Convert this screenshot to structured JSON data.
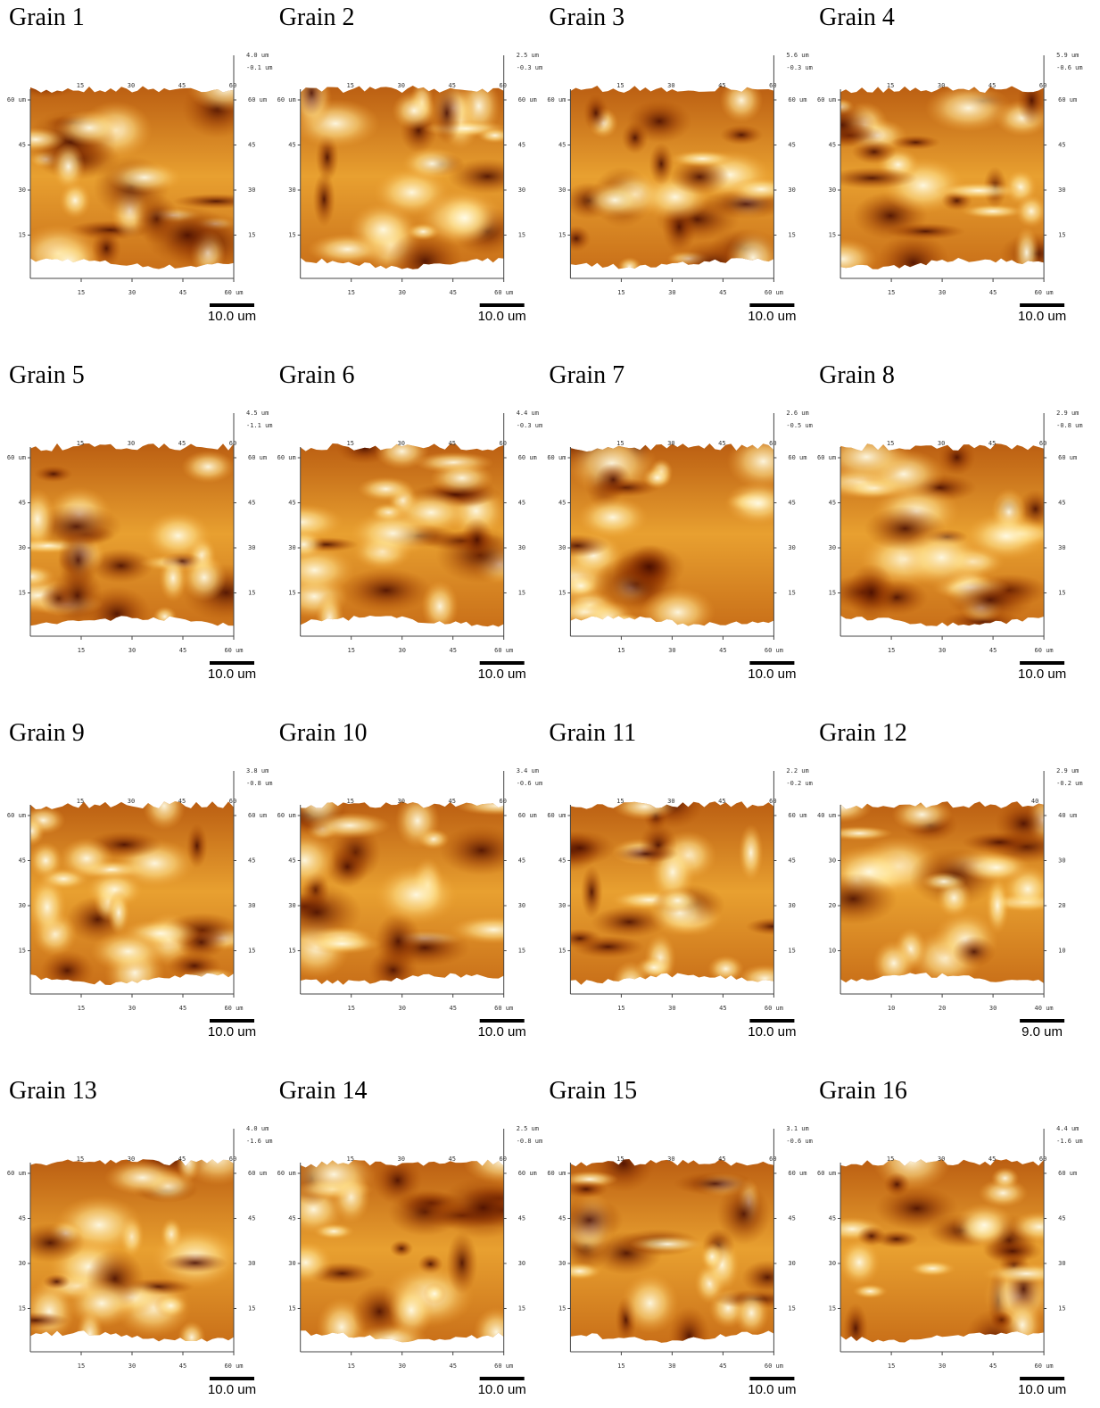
{
  "panels": [
    {
      "title": "Grain 1",
      "z_max": "4.0 um",
      "z_min": "-0.1 um",
      "top_ticks": [
        "15",
        "30",
        "45",
        "60"
      ],
      "y_ticks_left": [
        "60 um",
        "45",
        "30",
        "15"
      ],
      "y_ticks_right": [
        "60 um",
        "45",
        "30",
        "15"
      ],
      "x_ticks": [
        "15",
        "30",
        "45",
        "60 um"
      ],
      "scale": "10.0 um"
    },
    {
      "title": "Grain 2",
      "z_max": "2.5 um",
      "z_min": "-0.3 um",
      "top_ticks": [
        "15",
        "30",
        "45",
        "60"
      ],
      "y_ticks_left": [
        "60 um",
        "45",
        "30",
        "15"
      ],
      "y_ticks_right": [
        "60 um",
        "45",
        "30",
        "15"
      ],
      "x_ticks": [
        "15",
        "30",
        "45",
        "60 um"
      ],
      "scale": "10.0 um"
    },
    {
      "title": "Grain 3",
      "z_max": "5.6 um",
      "z_min": "-0.3 um",
      "top_ticks": [
        "15",
        "30",
        "45",
        "60"
      ],
      "y_ticks_left": [
        "60 um",
        "45",
        "30",
        "15"
      ],
      "y_ticks_right": [
        "60 um",
        "45",
        "30",
        "15"
      ],
      "x_ticks": [
        "15",
        "30",
        "45",
        "60 um"
      ],
      "scale": "10.0 um"
    },
    {
      "title": "Grain 4",
      "z_max": "5.9 um",
      "z_min": "-0.6 um",
      "top_ticks": [
        "15",
        "30",
        "45",
        "60"
      ],
      "y_ticks_left": [
        "60 um",
        "45",
        "30",
        "15"
      ],
      "y_ticks_right": [
        "60 um",
        "45",
        "30",
        "15"
      ],
      "x_ticks": [
        "15",
        "30",
        "45",
        "60 um"
      ],
      "scale": "10.0 um"
    },
    {
      "title": "Grain 5",
      "z_max": "4.5 um",
      "z_min": "-1.1 um",
      "top_ticks": [
        "15",
        "30",
        "45",
        "60"
      ],
      "y_ticks_left": [
        "60 um",
        "45",
        "30",
        "15"
      ],
      "y_ticks_right": [
        "60 um",
        "45",
        "30",
        "15"
      ],
      "x_ticks": [
        "15",
        "30",
        "45",
        "60 um"
      ],
      "scale": "10.0 um"
    },
    {
      "title": "Grain 6",
      "z_max": "4.4 um",
      "z_min": "-0.3 um",
      "top_ticks": [
        "15",
        "30",
        "45",
        "60"
      ],
      "y_ticks_left": [
        "60 um",
        "45",
        "30",
        "15"
      ],
      "y_ticks_right": [
        "60 um",
        "45",
        "30",
        "15"
      ],
      "x_ticks": [
        "15",
        "30",
        "45",
        "60 um"
      ],
      "scale": "10.0 um"
    },
    {
      "title": "Grain 7",
      "z_max": "2.6 um",
      "z_min": "-0.5 um",
      "top_ticks": [
        "15",
        "30",
        "45",
        "60"
      ],
      "y_ticks_left": [
        "60 um",
        "45",
        "30",
        "15"
      ],
      "y_ticks_right": [
        "60 um",
        "45",
        "30",
        "15"
      ],
      "x_ticks": [
        "15",
        "30",
        "45",
        "60 um"
      ],
      "scale": "10.0 um"
    },
    {
      "title": "Grain 8",
      "z_max": "2.9 um",
      "z_min": "-0.8 um",
      "top_ticks": [
        "15",
        "30",
        "45",
        "60"
      ],
      "y_ticks_left": [
        "60 um",
        "45",
        "30",
        "15"
      ],
      "y_ticks_right": [
        "60 um",
        "45",
        "30",
        "15"
      ],
      "x_ticks": [
        "15",
        "30",
        "45",
        "60 um"
      ],
      "scale": "10.0 um"
    },
    {
      "title": "Grain 9",
      "z_max": "3.8 um",
      "z_min": "-0.8 um",
      "top_ticks": [
        "15",
        "30",
        "45",
        "60"
      ],
      "y_ticks_left": [
        "60 um",
        "45",
        "30",
        "15"
      ],
      "y_ticks_right": [
        "60 um",
        "45",
        "30",
        "15"
      ],
      "x_ticks": [
        "15",
        "30",
        "45",
        "60 um"
      ],
      "scale": "10.0 um"
    },
    {
      "title": "Grain 10",
      "z_max": "3.4 um",
      "z_min": "-0.6 um",
      "top_ticks": [
        "15",
        "30",
        "45",
        "60"
      ],
      "y_ticks_left": [
        "60 um",
        "45",
        "30",
        "15"
      ],
      "y_ticks_right": [
        "60 um",
        "45",
        "30",
        "15"
      ],
      "x_ticks": [
        "15",
        "30",
        "45",
        "60 um"
      ],
      "scale": "10.0 um"
    },
    {
      "title": "Grain 11",
      "z_max": "2.2 um",
      "z_min": "-0.2 um",
      "top_ticks": [
        "15",
        "30",
        "45",
        "60"
      ],
      "y_ticks_left": [
        "60 um",
        "45",
        "30",
        "15"
      ],
      "y_ticks_right": [
        "60 um",
        "45",
        "30",
        "15"
      ],
      "x_ticks": [
        "15",
        "30",
        "45",
        "60 um"
      ],
      "scale": "10.0 um"
    },
    {
      "title": "Grain 12",
      "z_max": "2.9 um",
      "z_min": "-0.2 um",
      "top_ticks": [
        "40"
      ],
      "y_ticks_left": [
        "40 um",
        "30",
        "20",
        "10"
      ],
      "y_ticks_right": [
        "40 um",
        "30",
        "20",
        "10"
      ],
      "x_ticks": [
        "10",
        "20",
        "30",
        "40 um"
      ],
      "scale": "9.0 um"
    },
    {
      "title": "Grain 13",
      "z_max": "4.0 um",
      "z_min": "-1.6 um",
      "top_ticks": [
        "15",
        "30",
        "45",
        "60"
      ],
      "y_ticks_left": [
        "60 um",
        "45",
        "30",
        "15"
      ],
      "y_ticks_right": [
        "60 um",
        "45",
        "30",
        "15"
      ],
      "x_ticks": [
        "15",
        "30",
        "45",
        "60 um"
      ],
      "scale": "10.0 um"
    },
    {
      "title": "Grain 14",
      "z_max": "2.5 um",
      "z_min": "-0.8 um",
      "top_ticks": [
        "15",
        "30",
        "45",
        "60"
      ],
      "y_ticks_left": [
        "60 um",
        "45",
        "30",
        "15"
      ],
      "y_ticks_right": [
        "60 um",
        "45",
        "30",
        "15"
      ],
      "x_ticks": [
        "15",
        "30",
        "45",
        "60 um"
      ],
      "scale": "10.0 um"
    },
    {
      "title": "Grain 15",
      "z_max": "3.1 um",
      "z_min": "-0.6 um",
      "top_ticks": [
        "15",
        "30",
        "45",
        "60"
      ],
      "y_ticks_left": [
        "60 um",
        "45",
        "30",
        "15"
      ],
      "y_ticks_right": [
        "60 um",
        "45",
        "30",
        "15"
      ],
      "x_ticks": [
        "15",
        "30",
        "45",
        "60 um"
      ],
      "scale": "10.0 um"
    },
    {
      "title": "Grain 16",
      "z_max": "4.4 um",
      "z_min": "-1.6 um",
      "top_ticks": [
        "15",
        "30",
        "45",
        "60"
      ],
      "y_ticks_left": [
        "60 um",
        "45",
        "30",
        "15"
      ],
      "y_ticks_right": [
        "60 um",
        "45",
        "30",
        "15"
      ],
      "x_ticks": [
        "15",
        "30",
        "45",
        "60 um"
      ],
      "scale": "10.0 um"
    }
  ]
}
